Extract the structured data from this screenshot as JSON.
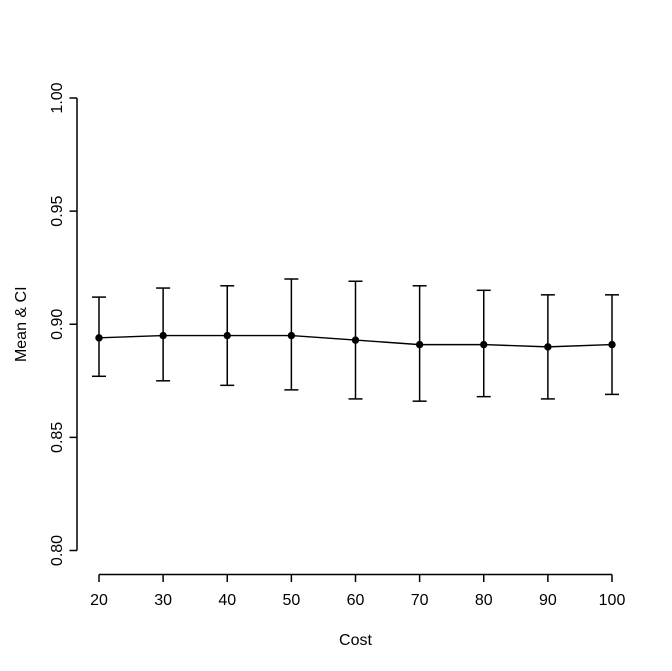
{
  "chart_data": {
    "type": "line",
    "title": "",
    "xlabel": "Cost",
    "ylabel": "Mean & CI",
    "x": [
      20,
      30,
      40,
      50,
      60,
      70,
      80,
      90,
      100
    ],
    "series": [
      {
        "name": "Mean",
        "values": [
          0.894,
          0.895,
          0.895,
          0.895,
          0.893,
          0.891,
          0.891,
          0.89,
          0.891
        ]
      }
    ],
    "error_bars": {
      "upper": [
        0.912,
        0.916,
        0.917,
        0.92,
        0.919,
        0.917,
        0.915,
        0.913,
        0.913
      ],
      "lower": [
        0.877,
        0.875,
        0.873,
        0.871,
        0.867,
        0.866,
        0.868,
        0.867,
        0.869
      ]
    },
    "x_tick_labels": [
      "20",
      "30",
      "40",
      "50",
      "60",
      "70",
      "80",
      "90",
      "100"
    ],
    "y_tick_labels": [
      "0.80",
      "0.85",
      "0.90",
      "0.95",
      "1.00"
    ],
    "xlim": [
      20,
      100
    ],
    "ylim": [
      0.8,
      1.0
    ],
    "grid": false,
    "legend": "none",
    "marker": "filled-circle",
    "colors": {
      "line": "#000000",
      "marker": "#000000",
      "axis": "#000000",
      "text": "#000000",
      "background": "#ffffff"
    }
  }
}
